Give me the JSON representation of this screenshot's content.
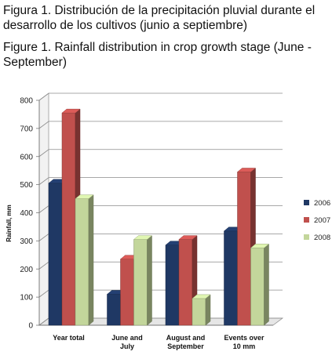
{
  "captions": {
    "es": "Figura 1.  Distribución de la precipitación pluvial durante el desarrollo de los cultivos (junio a septiembre)",
    "en": "Figure 1.  Rainfall distribution in crop growth stage (June - September)"
  },
  "chart_data": {
    "type": "bar",
    "ylabel": "Rainfall, mm",
    "ylim": [
      0,
      800
    ],
    "yticks": [
      0,
      100,
      200,
      300,
      400,
      500,
      600,
      700,
      800
    ],
    "grid": true,
    "legend_position": "right",
    "categories": [
      [
        "Year total"
      ],
      [
        "June and",
        "July"
      ],
      [
        "August and",
        "September"
      ],
      [
        "Events over",
        "10 mm"
      ]
    ],
    "series": [
      {
        "name": "2006",
        "color": "#1f3864",
        "values": [
          505,
          110,
          285,
          335
        ]
      },
      {
        "name": "2007",
        "color": "#c0504d",
        "values": [
          755,
          235,
          305,
          545
        ]
      },
      {
        "name": "2008",
        "color": "#c3d69b",
        "values": [
          450,
          305,
          95,
          275
        ]
      }
    ]
  }
}
